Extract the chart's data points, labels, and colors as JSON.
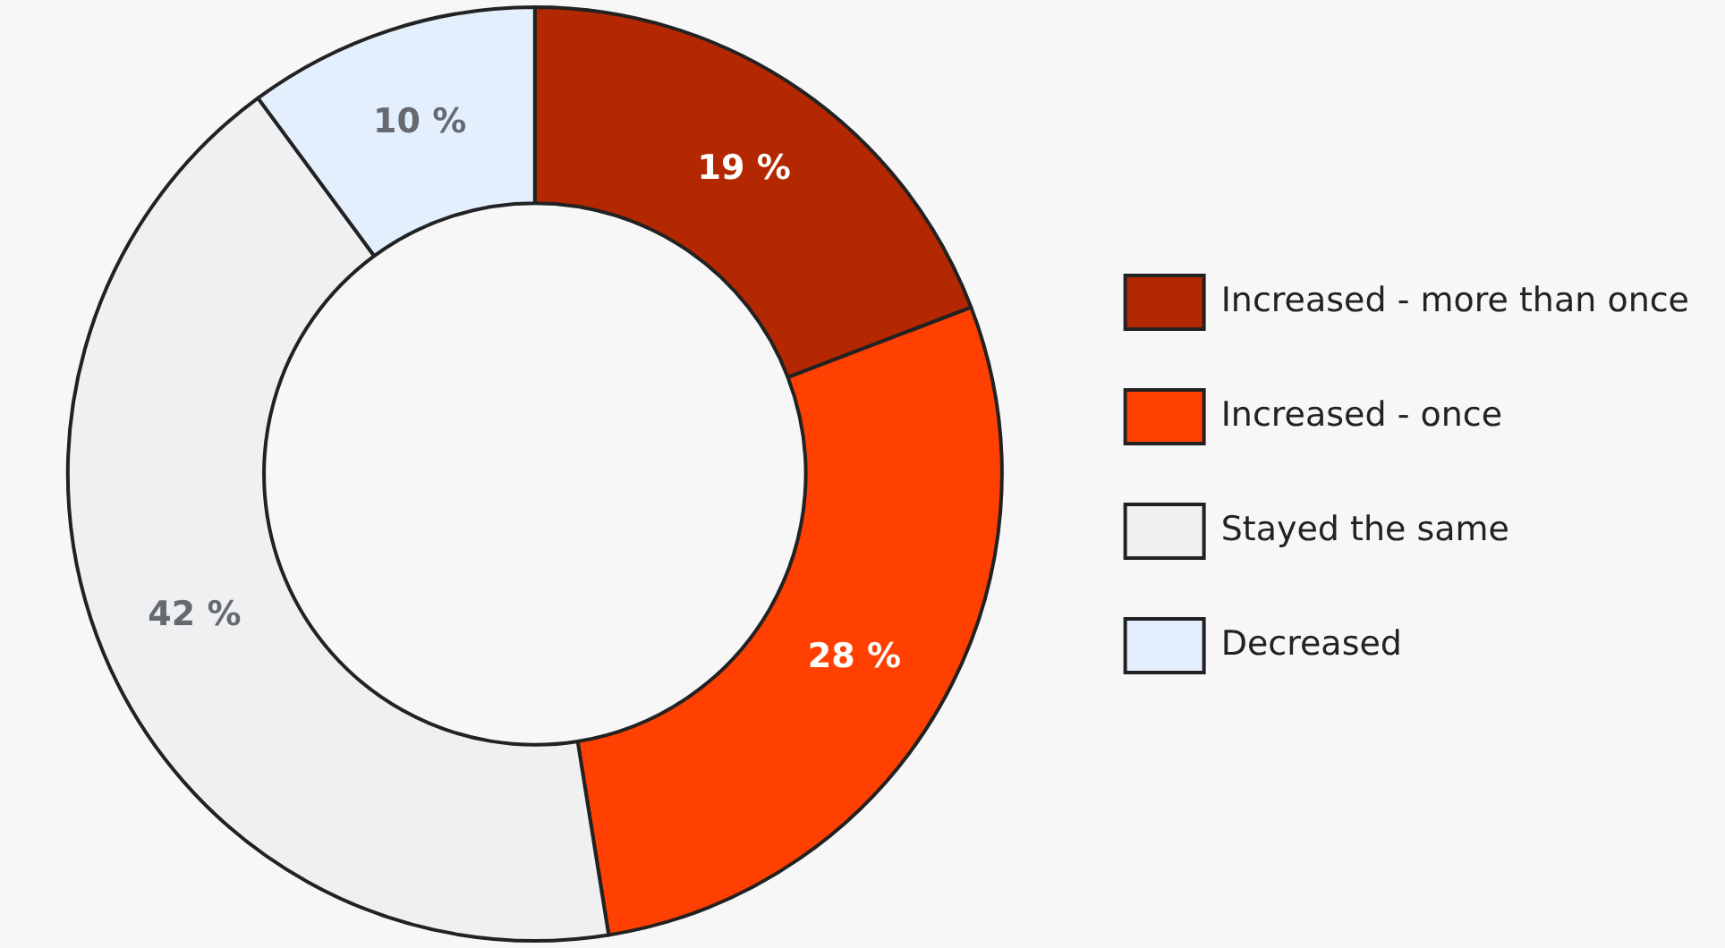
{
  "chart_data": {
    "type": "donut",
    "categories": [
      "Increased - more than once",
      "Increased - once",
      "Stayed the same",
      "Decreased"
    ],
    "values": [
      19,
      28,
      42,
      10
    ],
    "colors": [
      "#b32800",
      "#ff4000",
      "#eff0f2",
      "#e3effd"
    ],
    "value_labels": [
      "19 %",
      "28 %",
      "42 %",
      "10 %"
    ],
    "legend": "right"
  }
}
